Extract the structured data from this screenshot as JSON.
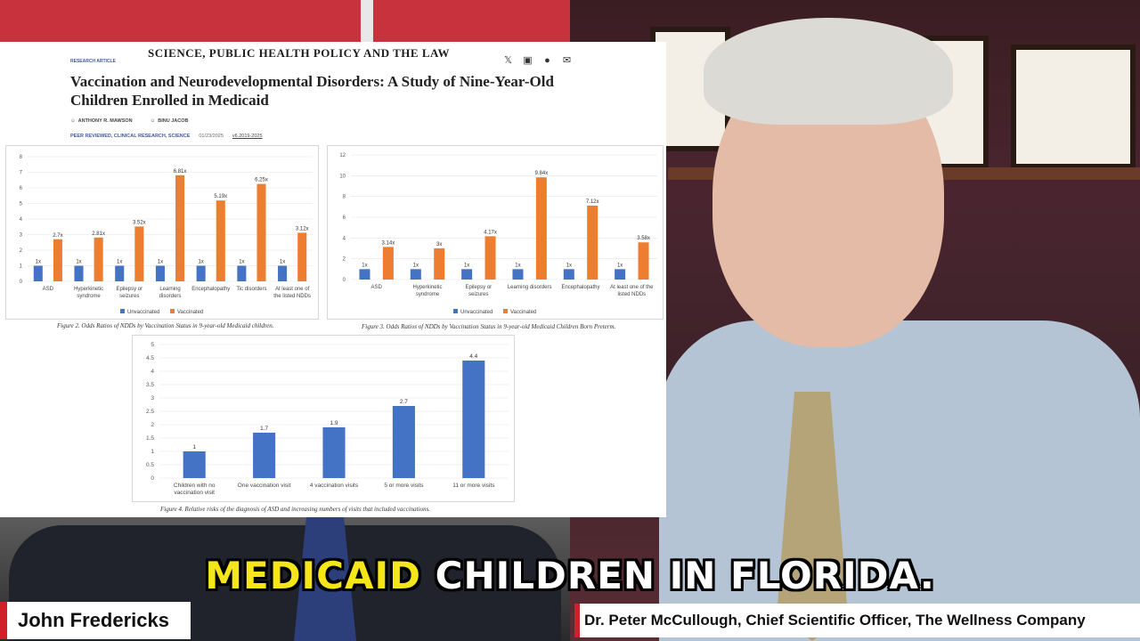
{
  "article": {
    "journal": "SCIENCE, PUBLIC HEALTH POLICY AND THE LAW",
    "tag": "RESEARCH ARTICLE",
    "title": "Vaccination and Neurodevelopmental Disorders: A Study of Nine-Year-Old Children Enrolled in Medicaid",
    "authors": [
      "ANTHONY R. MAWSON",
      "BINU JACOB"
    ],
    "categories": "PEER REVIEWED, CLINICAL RESEARCH, SCIENCE",
    "date": "01/23/2025",
    "volume": "v6.2019-2025",
    "share_icons": [
      "x-icon",
      "linkedin-icon",
      "facebook-icon",
      "email-icon"
    ]
  },
  "chart_data": [
    {
      "type": "bar",
      "caption": "Figure 2. Odds Ratios of NDDs by Vaccination Status in 9-year-old Medicaid children.",
      "categories": [
        "ASD",
        "Hyperkinetic syndrome",
        "Epilepsy or seizures",
        "Learning disorders",
        "Encephalopathy",
        "Tic disorders",
        "At least one of the listed NDDs"
      ],
      "category_lines": [
        [
          "ASD"
        ],
        [
          "Hyperkinetic",
          "syndrome"
        ],
        [
          "Epilepsy or",
          "seizures"
        ],
        [
          "Learning",
          "disorders"
        ],
        [
          "Encephalopathy"
        ],
        [
          "Tic disorders"
        ],
        [
          "At least one of",
          "the listed NDDs"
        ]
      ],
      "series": [
        {
          "name": "Unvaccinated",
          "color": "#4472c4",
          "values": [
            1,
            1,
            1,
            1,
            1,
            1,
            1
          ],
          "labels": [
            "1x",
            "1x",
            "1x",
            "1x",
            "1x",
            "1x",
            "1x"
          ]
        },
        {
          "name": "Vaccinated",
          "color": "#ed7d31",
          "values": [
            2.7,
            2.81,
            3.52,
            6.81,
            5.19,
            6.25,
            3.12
          ],
          "labels": [
            "2.7x",
            "2.81x",
            "3.52x",
            "6.81x",
            "5.19x",
            "6.25x",
            "3.12x"
          ]
        }
      ],
      "ylim": [
        0,
        8
      ],
      "yticks": [
        0,
        1,
        2,
        3,
        4,
        5,
        6,
        7,
        8
      ],
      "legend": "bottom",
      "grid": true
    },
    {
      "type": "bar",
      "caption": "Figure 3. Odds Ratios of NDDs by Vaccination Status in 9-year-old Medicaid Children Born Preterm.",
      "categories": [
        "ASD",
        "Hyperkinetic syndrome",
        "Epilepsy or seizures",
        "Learning disorders",
        "Encephalopathy",
        "At least one of the listed NDDs"
      ],
      "category_lines": [
        [
          "ASD"
        ],
        [
          "Hyperkinetic",
          "syndrome"
        ],
        [
          "Epilepsy or",
          "seizures"
        ],
        [
          "Learning disorders"
        ],
        [
          "Encephalopathy"
        ],
        [
          "At least one of the",
          "listed NDDs"
        ]
      ],
      "series": [
        {
          "name": "Unvaccinated",
          "color": "#4472c4",
          "values": [
            1,
            1,
            1,
            1,
            1,
            1
          ],
          "labels": [
            "1x",
            "1x",
            "1x",
            "1x",
            "1x",
            "1x"
          ]
        },
        {
          "name": "Vaccinated",
          "color": "#ed7d31",
          "values": [
            3.14,
            3,
            4.17,
            9.84,
            7.12,
            3.58
          ],
          "labels": [
            "3.14x",
            "3x",
            "4.17x",
            "9.84x",
            "7.12x",
            "3.58x"
          ]
        }
      ],
      "ylim": [
        0,
        12
      ],
      "yticks": [
        0,
        2,
        4,
        6,
        8,
        10,
        12
      ],
      "legend": "bottom",
      "grid": true
    },
    {
      "type": "bar",
      "caption": "Figure 4. Relative risks of the diagnosis of ASD and increasing numbers of visits that included vaccinations.",
      "categories": [
        "Children with no vaccination visit",
        "One vaccination visit",
        "4 vaccination visits",
        "5 or more visits",
        "11 or more visits"
      ],
      "category_lines": [
        [
          "Children with no",
          "vaccination visit"
        ],
        [
          "One vaccination visit"
        ],
        [
          "4 vaccination visits"
        ],
        [
          "5 or more visits"
        ],
        [
          "11 or more visits"
        ]
      ],
      "series": [
        {
          "color": "#4472c4",
          "values": [
            1,
            1.7,
            1.9,
            2.7,
            4.4
          ],
          "labels": [
            "1",
            "1.7",
            "1.9",
            "2.7",
            "4.4"
          ]
        }
      ],
      "ylim": [
        0,
        5
      ],
      "yticks": [
        0,
        0.5,
        1,
        1.5,
        2,
        2.5,
        3,
        3.5,
        4,
        4.5,
        5
      ],
      "grid": true
    }
  ],
  "subtitle": {
    "highlight": "MEDICAID",
    "rest": " CHILDREN IN FLORIDA."
  },
  "lower_thirds": {
    "left_name": "John Fredericks",
    "right_name": "Dr. Peter McCullough, Chief Scientific Officer, The Wellness Company"
  },
  "colors": {
    "accent_red": "#d0202a",
    "subtitle_highlight": "#f5e619"
  }
}
